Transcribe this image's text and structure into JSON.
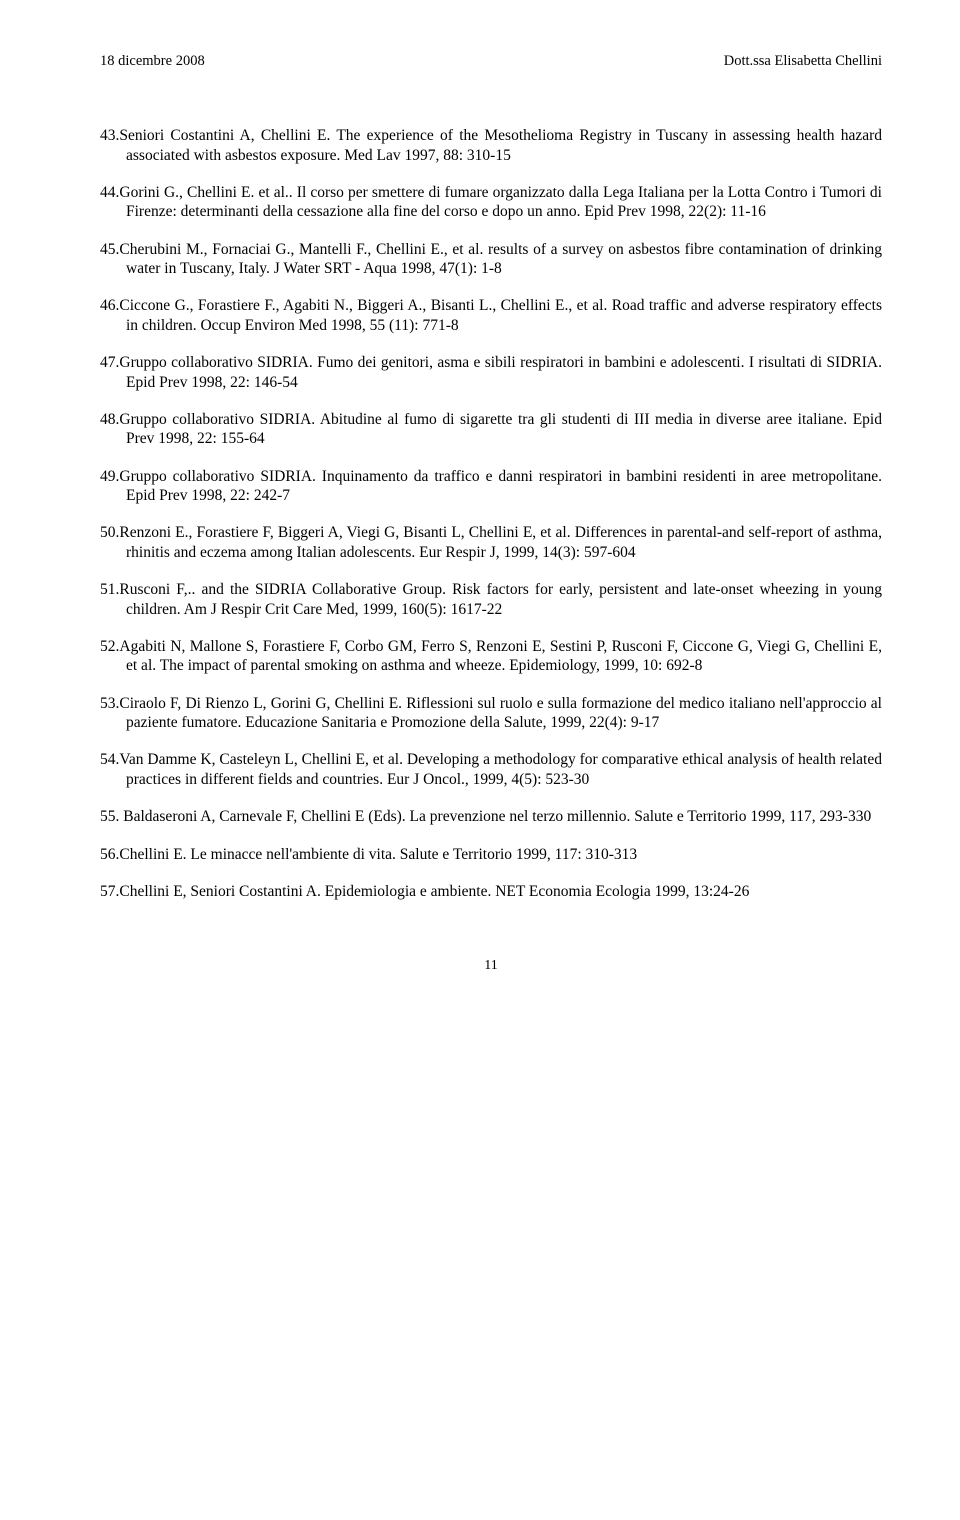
{
  "header": {
    "left": "18 dicembre 2008",
    "right": "Dott.ssa Elisabetta Chellini"
  },
  "references": [
    "43.Seniori Costantini A, Chellini E. The experience of the Mesothelioma Registry in Tuscany in assessing health hazard associated with asbestos exposure. Med Lav 1997, 88: 310-15",
    "44.Gorini G., Chellini E. et al.. Il corso per smettere di fumare organizzato dalla Lega Italiana per la Lotta Contro i Tumori di Firenze: determinanti della cessazione alla fine del corso e dopo un anno. Epid Prev 1998, 22(2): 11-16",
    "45.Cherubini M., Fornaciai G., Mantelli F., Chellini E., et al. results of a survey on asbestos fibre contamination of drinking water in Tuscany, Italy. J Water SRT - Aqua 1998, 47(1): 1-8",
    "46.Ciccone G., Forastiere F., Agabiti N., Biggeri A., Bisanti L., Chellini E., et al. Road traffic and adverse respiratory effects in children. Occup Environ Med 1998, 55 (11): 771-8",
    "47.Gruppo collaborativo SIDRIA. Fumo dei genitori, asma e sibili respiratori in bambini e adolescenti. I risultati di SIDRIA. Epid Prev 1998, 22: 146-54",
    "48.Gruppo collaborativo SIDRIA. Abitudine al fumo di sigarette tra gli studenti di III media in diverse aree italiane. Epid Prev 1998, 22: 155-64",
    "49.Gruppo collaborativo SIDRIA. Inquinamento da traffico e danni respiratori in bambini residenti in aree metropolitane. Epid Prev 1998, 22: 242-7",
    "50.Renzoni E., Forastiere F, Biggeri A, Viegi G, Bisanti L, Chellini E, et al. Differences in parental-and self-report of asthma, rhinitis and eczema among Italian adolescents. Eur Respir J, 1999, 14(3): 597-604",
    "51.Rusconi F,.. and the SIDRIA Collaborative Group. Risk factors for early, persistent and late-onset wheezing in young children. Am J Respir Crit Care Med, 1999, 160(5): 1617-22",
    "52.Agabiti N, Mallone S, Forastiere F, Corbo GM, Ferro S, Renzoni E, Sestini P, Rusconi F, Ciccone G, Viegi G, Chellini E, et al. The impact of parental smoking on asthma and wheeze. Epidemiology, 1999, 10: 692-8",
    "53.Ciraolo F, Di Rienzo L, Gorini G, Chellini E. Riflessioni sul ruolo e sulla formazione del medico italiano nell'approccio al paziente fumatore. Educazione Sanitaria e Promozione della Salute, 1999, 22(4): 9-17",
    "54.Van Damme K, Casteleyn L, Chellini E, et al. Developing a methodology for comparative ethical analysis of health related practices in different fields and countries. Eur J Oncol., 1999, 4(5): 523-30",
    "55. Baldaseroni A, Carnevale F, Chellini E (Eds). La prevenzione nel terzo millennio. Salute e Territorio 1999, 117, 293-330",
    "56.Chellini E. Le minacce nell'ambiente di vita. Salute e Territorio 1999, 117: 310-313",
    "57.Chellini E, Seniori Costantini A. Epidemiologia e ambiente. NET Economia Ecologia 1999, 13:24-26"
  ],
  "page_number": "11"
}
